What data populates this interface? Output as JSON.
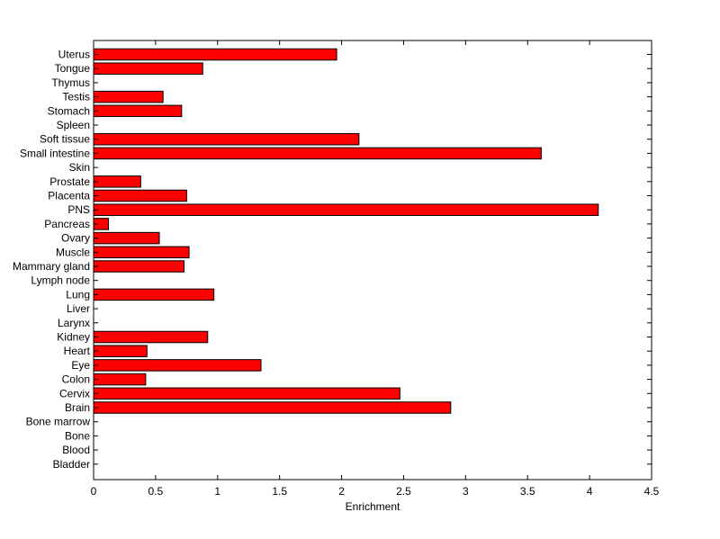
{
  "chart_data": {
    "type": "bar",
    "orientation": "horizontal",
    "title": "",
    "xlabel": "Enrichment",
    "ylabel": "",
    "xlim": [
      0,
      4.5
    ],
    "xticks": [
      "0",
      "0.5",
      "1",
      "1.5",
      "2",
      "2.5",
      "3",
      "3.5",
      "4",
      "4.5"
    ],
    "grid": false,
    "bar_color": "#ff0000",
    "categories": [
      "Uterus",
      "Tongue",
      "Thymus",
      "Testis",
      "Stomach",
      "Spleen",
      "Soft tissue",
      "Small intestine",
      "Skin",
      "Prostate",
      "Placenta",
      "PNS",
      "Pancreas",
      "Ovary",
      "Muscle",
      "Mammary gland",
      "Lymph node",
      "Lung",
      "Liver",
      "Larynx",
      "Kidney",
      "Heart",
      "Eye",
      "Colon",
      "Cervix",
      "Brain",
      "Bone marrow",
      "Bone",
      "Blood",
      "Bladder"
    ],
    "values": [
      1.96,
      0.88,
      0,
      0.56,
      0.71,
      0,
      2.14,
      3.61,
      0,
      0.38,
      0.75,
      4.07,
      0.12,
      0.53,
      0.77,
      0.73,
      0,
      0.97,
      0,
      0,
      0.92,
      0.43,
      1.35,
      0.42,
      2.47,
      2.88,
      0,
      0,
      0,
      0
    ]
  }
}
